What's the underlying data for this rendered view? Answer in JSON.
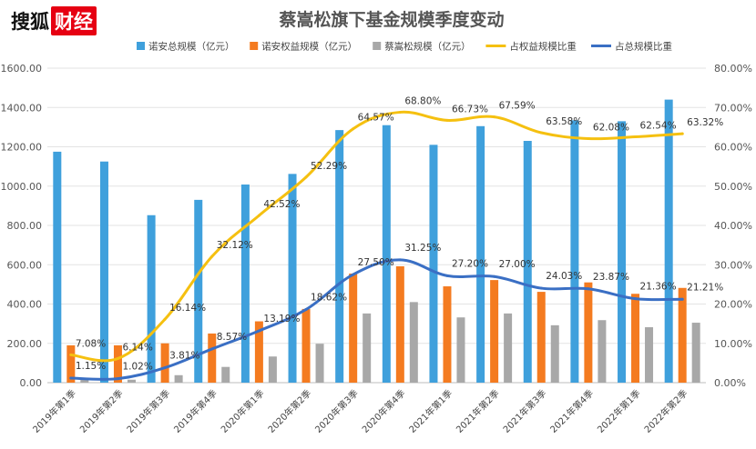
{
  "brand": {
    "part1": "搜狐",
    "part2": "财经"
  },
  "chart_data": {
    "type": "bar",
    "title": "蔡嵩松旗下基金规模季度变动",
    "categories": [
      "2019年第1季",
      "2019年第2季",
      "2019年第3季",
      "2019年第4季",
      "2020年第1季",
      "2020年第2季",
      "2020年第3季",
      "2020年第4季",
      "2021年第1季",
      "2021年第2季",
      "2021年第3季",
      "2021年第4季",
      "2022年第1季",
      "2022年第2季"
    ],
    "left_axis": {
      "min": 0,
      "max": 1600,
      "ticks": [
        "0.00",
        "200.00",
        "400.00",
        "600.00",
        "800.00",
        "1000.00",
        "1200.00",
        "1400.00",
        "1600.00"
      ]
    },
    "right_axis": {
      "min": 0,
      "max": 80,
      "ticks": [
        "0.00%",
        "10.00%",
        "20.00%",
        "30.00%",
        "40.00%",
        "50.00%",
        "60.00%",
        "70.00%",
        "80.00%"
      ]
    },
    "grid": true,
    "legend_position": "top",
    "series": [
      {
        "name": "诺安总规模（亿元）",
        "kind": "bar",
        "axis": "left",
        "color": "#3fa0dc",
        "values": [
          1175,
          1125,
          852,
          930,
          1008,
          1062,
          1285,
          1310,
          1210,
          1305,
          1230,
          1335,
          1330,
          1440
        ]
      },
      {
        "name": "诺安权益规模（亿元）",
        "kind": "bar",
        "axis": "left",
        "color": "#f47b20",
        "values": [
          190,
          190,
          200,
          250,
          312,
          375,
          555,
          592,
          490,
          522,
          462,
          510,
          452,
          482
        ]
      },
      {
        "name": "蔡嵩松规模（亿元）",
        "kind": "bar",
        "axis": "left",
        "color": "#a8a8a8",
        "values": [
          20,
          15,
          38,
          80,
          133,
          198,
          352,
          410,
          332,
          352,
          292,
          318,
          282,
          305
        ]
      },
      {
        "name": "占权益规模比重",
        "kind": "line",
        "axis": "right",
        "color": "#f5c010",
        "values": [
          7.08,
          6.14,
          16.14,
          32.12,
          42.52,
          52.29,
          64.57,
          68.8,
          66.73,
          67.59,
          63.58,
          62.08,
          62.54,
          63.32
        ],
        "labels": [
          "7.08%",
          "6.14%",
          "16.14%",
          "32.12%",
          "42.52%",
          "52.29%",
          "64.57%",
          "68.80%",
          "66.73%",
          "67.59%",
          "63.58%",
          "62.08%",
          "62.54%",
          "63.32%"
        ]
      },
      {
        "name": "占总规模比重",
        "kind": "line",
        "axis": "right",
        "color": "#3a6fc4",
        "values": [
          1.15,
          1.02,
          3.81,
          8.57,
          13.19,
          18.62,
          27.5,
          31.25,
          27.2,
          27.0,
          24.03,
          23.87,
          21.36,
          21.21
        ],
        "labels": [
          "1.15%",
          "1.02%",
          "3.81%",
          "8.57%",
          "13.19%",
          "18.62%",
          "27.50%",
          "31.25%",
          "27.20%",
          "27.00%",
          "24.03%",
          "23.87%",
          "21.36%",
          "21.21%"
        ]
      }
    ]
  }
}
